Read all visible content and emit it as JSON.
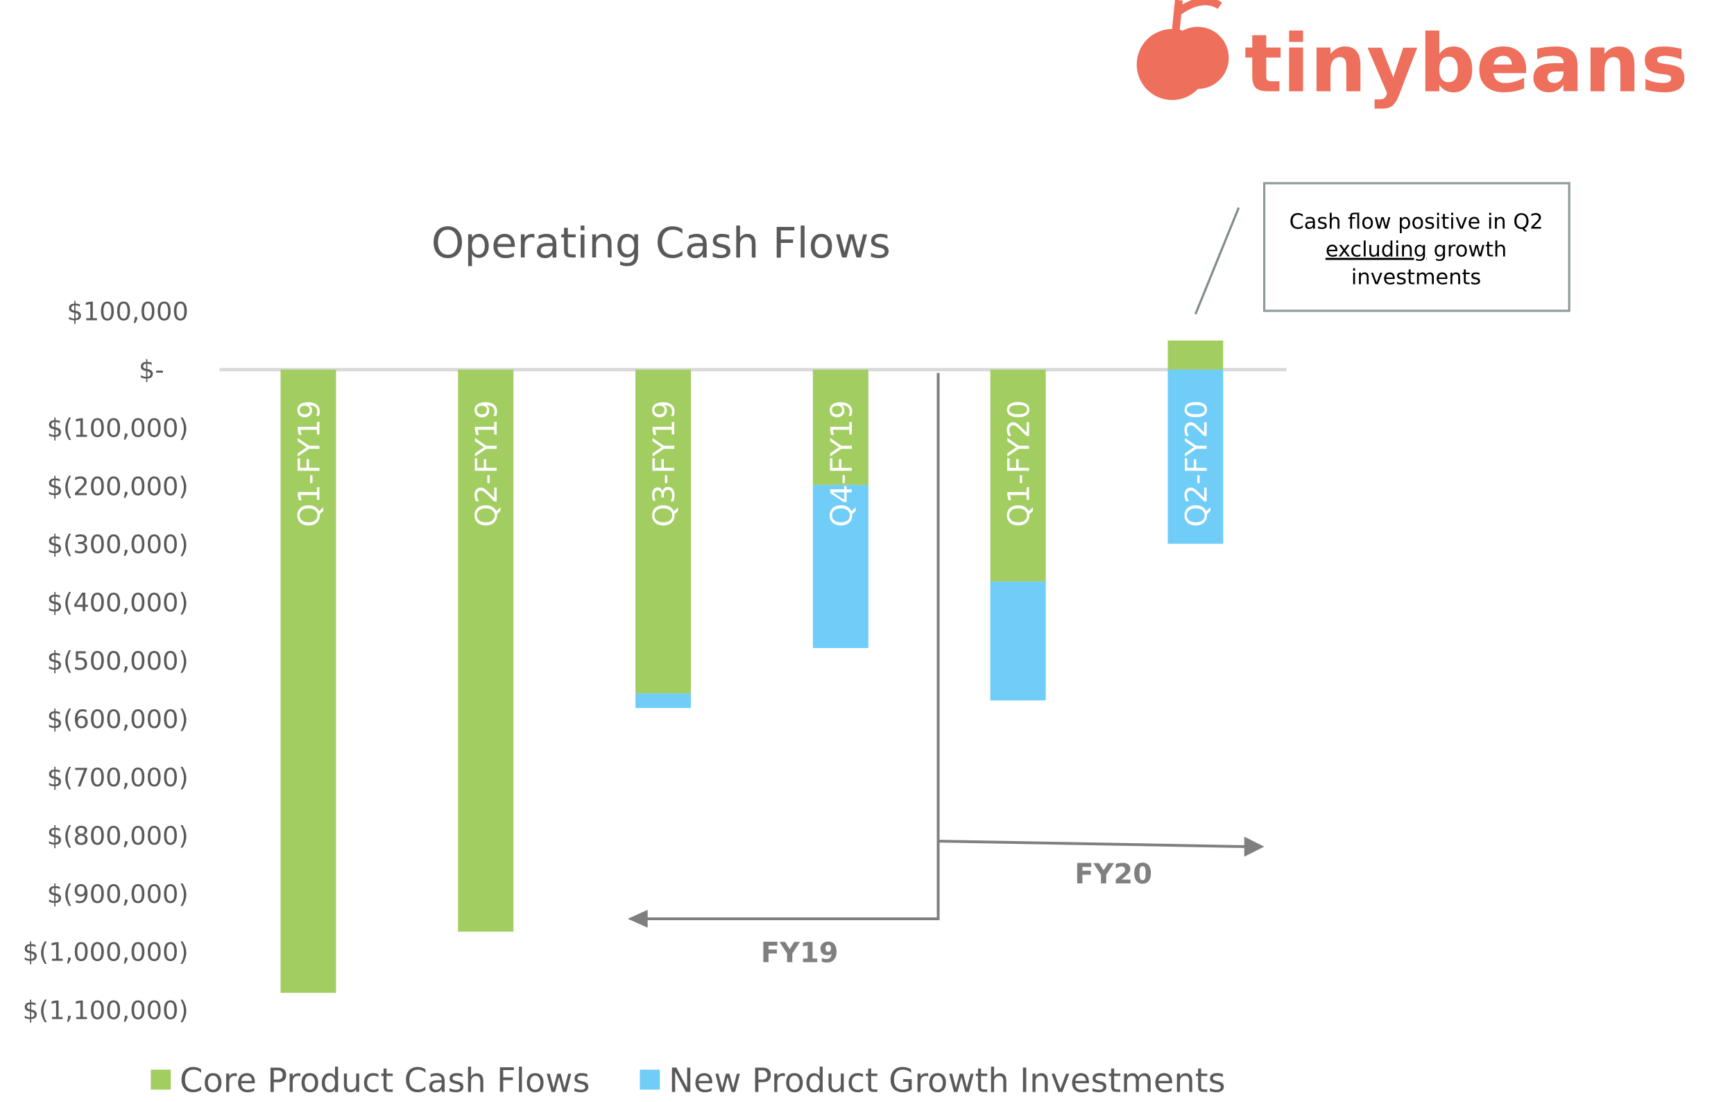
{
  "logo": {
    "text": "tinybeans",
    "color": "#ee6f5b"
  },
  "chart_data": {
    "type": "bar",
    "stacked": true,
    "title": "Operating Cash Flows",
    "categories": [
      "Q1-FY19",
      "Q2-FY19",
      "Q3-FY19",
      "Q4-FY19",
      "Q1-FY20",
      "Q2-FY20"
    ],
    "series": [
      {
        "name": "Core Product Cash Flows",
        "color": "#a2cd61",
        "values": [
          -1070000,
          -965000,
          -556000,
          -198000,
          -364000,
          50000
        ]
      },
      {
        "name": "New Product Growth Investments",
        "color": "#6fcdf8",
        "values": [
          0,
          0,
          -25000,
          -280000,
          -204000,
          -299000
        ]
      }
    ],
    "ylim": [
      -1100000,
      100000
    ],
    "yticks": [
      100000,
      0,
      -100000,
      -200000,
      -300000,
      -400000,
      -500000,
      -600000,
      -700000,
      -800000,
      -900000,
      -1000000,
      -1100000
    ],
    "ytick_labels": [
      "$100,000",
      "$-",
      "$(100,000)",
      "$(200,000)",
      "$(300,000)",
      "$(400,000)",
      "$(500,000)",
      "$(600,000)",
      "$(700,000)",
      "$(800,000)",
      "$(900,000)",
      "$(1,000,000)",
      "$(1,100,000)"
    ],
    "legend_position": "bottom",
    "annotations": {
      "fy19": "FY19",
      "fy20": "FY20",
      "callout": [
        "Cash flow positive in Q2",
        "excluding",
        " growth",
        "investments"
      ]
    }
  }
}
